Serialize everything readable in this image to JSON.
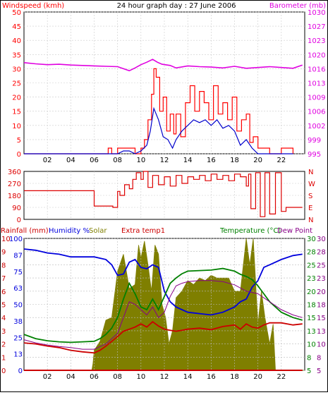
{
  "title": "24 hour graph day : 27 June 2006",
  "colors": {
    "wind": "#ff0000",
    "wind_avg": "#0000cc",
    "barometer": "#e000e0",
    "winddir": "#dd0000",
    "humidity": "#0000dd",
    "solar": "#7f7f00",
    "extra": "#cc0000",
    "temperature": "#008000",
    "dewpoint": "#880088",
    "rainfall": "#cc0000",
    "grid": "#000000"
  },
  "chart_data": [
    {
      "type": "line",
      "name": "wind-barometer",
      "y_left_label": "Windspeed (kmh)",
      "y_right_label": "Barometer (mb)",
      "x_ticks": [
        "02",
        "04",
        "06",
        "08",
        "10",
        "12",
        "14",
        "16",
        "18",
        "20",
        "22"
      ],
      "y_left_ticks": [
        "50",
        "45",
        "40",
        "35",
        "30",
        "25",
        "20",
        "15",
        "10",
        "5",
        "0"
      ],
      "y_right_ticks": [
        "1030",
        "1027",
        "1023",
        "1020",
        "1016",
        "1013",
        "1009",
        "1006",
        "1002",
        "999",
        "995"
      ],
      "ylim_left": [
        0,
        50
      ],
      "ylim_right": [
        995,
        1030
      ],
      "series": [
        {
          "key": "gust",
          "x": [
            0,
            2,
            4,
            6,
            7.2,
            7.5,
            8,
            8.5,
            9,
            9.5,
            10,
            10.3,
            10.6,
            10.9,
            11.1,
            11.3,
            11.6,
            11.9,
            12.2,
            12.5,
            12.8,
            13,
            13.4,
            13.8,
            14.2,
            14.6,
            15,
            15.4,
            15.8,
            16.2,
            16.6,
            17,
            17.4,
            17.8,
            18.2,
            18.6,
            19,
            19.3,
            19.6,
            20,
            20.5,
            21,
            22,
            23
          ],
          "values": [
            0,
            0,
            0,
            0,
            2,
            0,
            2,
            2,
            2,
            0,
            2,
            5,
            12,
            21,
            30,
            27,
            15,
            20,
            8,
            14,
            7,
            14,
            6,
            18,
            24,
            15,
            22,
            18,
            12,
            24,
            14,
            18,
            12,
            20,
            8,
            12,
            14,
            4,
            6,
            2,
            2,
            0,
            2,
            0
          ]
        },
        {
          "key": "average",
          "x": [
            0,
            2,
            4,
            6,
            7.5,
            8,
            8.5,
            9,
            9.5,
            10,
            10.5,
            10.8,
            11.1,
            11.5,
            11.9,
            12.3,
            12.7,
            13,
            13.5,
            14,
            14.5,
            15,
            15.5,
            16,
            16.5,
            17,
            17.5,
            18,
            18.5,
            19,
            19.5,
            20,
            20.5,
            23
          ],
          "values": [
            0,
            0,
            0,
            0,
            0,
            0,
            1,
            1,
            0,
            1,
            3,
            8,
            16,
            12,
            6,
            5,
            2,
            5,
            8,
            10,
            12,
            11,
            12,
            10,
            12,
            9,
            10,
            8,
            3,
            5,
            2,
            0,
            0,
            0
          ]
        },
        {
          "key": "barometer",
          "x": [
            0,
            1,
            2,
            3,
            4,
            5,
            6,
            7,
            8,
            8.5,
            9,
            9.5,
            10,
            10.5,
            11,
            11.4,
            11.8,
            12.5,
            13,
            14,
            15,
            16,
            17,
            18,
            19,
            20,
            21,
            22,
            23,
            23.8
          ],
          "values": [
            1017.5,
            1017.2,
            1017.0,
            1017.1,
            1016.9,
            1016.8,
            1016.7,
            1016.6,
            1016.5,
            1016.0,
            1015.5,
            1016.2,
            1017.0,
            1017.6,
            1018.3,
            1017.6,
            1017.1,
            1016.8,
            1016.2,
            1016.7,
            1016.5,
            1016.4,
            1016.2,
            1016.6,
            1016.1,
            1016.3,
            1016.5,
            1016.3,
            1016.1,
            1016.9
          ]
        }
      ]
    },
    {
      "type": "line",
      "name": "wind-direction",
      "y_left_ticks": [
        "360",
        "270",
        "180",
        "90",
        "0"
      ],
      "y_right_ticks": [
        "N",
        "W",
        "S",
        "E",
        "N"
      ],
      "ylim": [
        0,
        360
      ],
      "series": [
        {
          "key": "direction",
          "x": [
            0,
            3.5,
            5.9,
            6,
            7.3,
            7.6,
            8,
            8.2,
            8.6,
            9,
            9.3,
            9.6,
            10,
            10.2,
            10.6,
            11,
            11.5,
            12,
            12.5,
            13,
            13.5,
            14,
            14.5,
            15,
            15.5,
            16,
            16.5,
            17,
            17.5,
            18,
            18.5,
            19,
            19.2,
            19.4,
            19.8,
            20.2,
            20.6,
            21,
            21.5,
            22,
            22.4,
            23,
            23.8
          ],
          "values": [
            215,
            215,
            215,
            100,
            100,
            90,
            210,
            180,
            260,
            230,
            300,
            350,
            300,
            360,
            240,
            330,
            260,
            320,
            250,
            330,
            270,
            320,
            300,
            330,
            290,
            340,
            300,
            330,
            290,
            340,
            320,
            250,
            340,
            80,
            350,
            20,
            350,
            40,
            350,
            60,
            90,
            90,
            90
          ]
        }
      ]
    },
    {
      "type": "line",
      "name": "humidity-temperature",
      "y_left_labels": [
        "Rainfall (mm)",
        "Humidity %",
        "Solar",
        "Extra temp1"
      ],
      "y_right_labels": [
        "Temperature (°C)",
        "Dew Point"
      ],
      "x_ticks": [
        "02",
        "04",
        "06",
        "08",
        "10",
        "12",
        "14",
        "16",
        "18",
        "20",
        "22"
      ],
      "y_left1_ticks": [
        "10",
        "9",
        "8",
        "7",
        "6",
        "5",
        "4",
        "3",
        "2",
        "1",
        "0"
      ],
      "y_left2_ticks": [
        "100",
        "87",
        "75",
        "63",
        "50",
        "38",
        "25",
        "13",
        "0"
      ],
      "y_right1_ticks": [
        "30",
        "28",
        "25",
        "23",
        "20",
        "18",
        "15",
        "13",
        "10",
        "8",
        "5"
      ],
      "y_right2_ticks": [
        "30",
        "28",
        "25",
        "23",
        "20",
        "18",
        "15",
        "13",
        "10",
        "8",
        "5"
      ],
      "ylim_humidity": [
        0,
        100
      ],
      "ylim_temperature": [
        5,
        30
      ],
      "ylim_rainfall": [
        0,
        10
      ],
      "series": [
        {
          "key": "solar",
          "x": [
            0,
            5.8,
            5.9,
            6,
            6.5,
            7,
            7.5,
            8,
            8.5,
            9,
            9.5,
            9.8,
            10,
            10.3,
            10.6,
            10.9,
            11.2,
            11.5,
            11.8,
            12.1,
            12.4,
            12.7,
            13,
            13.5,
            14,
            14.5,
            15,
            15.5,
            16,
            16.5,
            17,
            17.5,
            18,
            18.5,
            19,
            19.3,
            19.6,
            20,
            20.3,
            20.6,
            21,
            21.3,
            21.5,
            24
          ],
          "values": [
            0,
            0,
            5,
            15,
            22,
            38,
            40,
            75,
            88,
            62,
            65,
            95,
            85,
            98,
            80,
            60,
            95,
            88,
            50,
            40,
            20,
            30,
            55,
            60,
            68,
            65,
            70,
            68,
            72,
            70,
            70,
            70,
            60,
            60,
            100,
            80,
            100,
            35,
            60,
            40,
            20,
            35,
            0,
            0
          ]
        },
        {
          "key": "humidity",
          "x": [
            0,
            1,
            2,
            3,
            4,
            5,
            6,
            7,
            7.5,
            8,
            8.5,
            9,
            9.5,
            10,
            10.5,
            11,
            11.5,
            12,
            12.5,
            13,
            13.5,
            14,
            15,
            16,
            17,
            18,
            18.5,
            19,
            19.5,
            20,
            20.5,
            21,
            22,
            23,
            23.8
          ],
          "values": [
            92,
            91,
            89,
            88,
            86,
            86,
            86,
            84,
            80,
            72,
            73,
            82,
            84,
            78,
            77,
            80,
            78,
            60,
            52,
            48,
            46,
            44,
            43,
            42,
            44,
            48,
            52,
            54,
            63,
            68,
            78,
            80,
            84,
            87,
            88
          ]
        },
        {
          "key": "temperature",
          "x": [
            0,
            1,
            2,
            3,
            4,
            5,
            6,
            6.5,
            7,
            7.5,
            8,
            8.5,
            9,
            9.5,
            10,
            10.5,
            11,
            11.5,
            12,
            12.5,
            13,
            13.5,
            14,
            15,
            16,
            17,
            18,
            18.5,
            19,
            19.5,
            20,
            20.5,
            21,
            21.5,
            22,
            22.5,
            23,
            23.8
          ],
          "values": [
            11.8,
            11.0,
            10.6,
            10.4,
            10.3,
            10.4,
            10.5,
            11.0,
            11.8,
            13.0,
            15.0,
            18.5,
            21.5,
            19.5,
            17.0,
            16.5,
            18.5,
            16.5,
            19.0,
            21.5,
            22.5,
            23.3,
            23.8,
            23.9,
            24.0,
            24.3,
            23.8,
            23.2,
            22.8,
            22.2,
            21.0,
            19.5,
            18.0,
            17.0,
            16.0,
            15.5,
            15.0,
            14.5
          ]
        },
        {
          "key": "dewpoint",
          "x": [
            0,
            1,
            2,
            3,
            4,
            5,
            6,
            6.5,
            7,
            7.5,
            8,
            8.5,
            9,
            9.5,
            10,
            10.5,
            11,
            11.5,
            12,
            12.5,
            13,
            13.5,
            14,
            15,
            16,
            17,
            18,
            19,
            20,
            21,
            22,
            23,
            23.8
          ],
          "values": [
            10.8,
            10.2,
            9.8,
            9.5,
            9.3,
            9.0,
            9.0,
            9.5,
            10.0,
            11.0,
            12.0,
            15.0,
            18.0,
            17.5,
            16.5,
            15.5,
            17.0,
            15.0,
            16.0,
            19.0,
            21.0,
            21.5,
            21.8,
            22.0,
            22.0,
            21.8,
            21.2,
            20.0,
            19.5,
            18.0,
            16.5,
            15.5,
            15.0
          ]
        },
        {
          "key": "extra",
          "x": [
            0,
            1,
            2,
            3,
            4,
            5,
            6,
            6.5,
            7,
            7.5,
            8,
            8.5,
            9,
            9.5,
            10,
            10.5,
            11,
            11.5,
            12,
            12.5,
            13,
            13.5,
            14,
            15,
            16,
            17,
            18,
            18.5,
            19,
            19.5,
            20,
            20.5,
            21,
            22,
            23,
            23.8
          ],
          "values": [
            10.2,
            10.0,
            9.6,
            9.3,
            8.8,
            8.5,
            8.3,
            8.8,
            9.6,
            10.5,
            11.4,
            12.4,
            12.8,
            13.2,
            13.8,
            13.2,
            14.2,
            13.4,
            12.8,
            12.6,
            12.4,
            12.6,
            12.8,
            13.0,
            12.7,
            13.3,
            13.6,
            12.8,
            13.8,
            13.2,
            13.0,
            13.6,
            14.0,
            14.0,
            13.6,
            13.8
          ]
        },
        {
          "key": "rainfall",
          "x": [
            0,
            23.8
          ],
          "values": [
            0,
            0
          ]
        }
      ]
    }
  ]
}
